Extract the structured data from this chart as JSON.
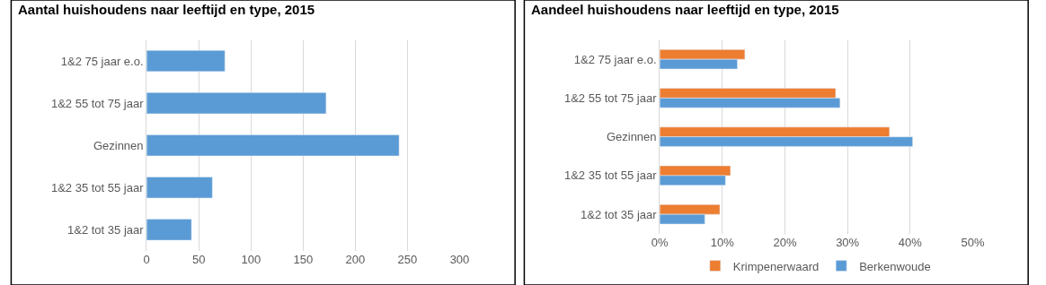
{
  "chart_data": [
    {
      "type": "bar",
      "orientation": "horizontal",
      "title": "Aantal huishoudens naar leeftijd en type, 2015",
      "categories": [
        "1&2 75 jaar e.o.",
        "1&2 55 tot 75 jaar",
        "Gezinnen",
        "1&2 35 tot 55 jaar",
        "1&2 tot 35 jaar"
      ],
      "series": [
        {
          "color": "#5b9bd5",
          "values": [
            75,
            172,
            242,
            63,
            43
          ]
        }
      ],
      "xlim": [
        0,
        300
      ],
      "xticks": [
        0,
        50,
        100,
        150,
        200,
        250,
        300
      ],
      "grid": "x",
      "legend": false
    },
    {
      "type": "bar",
      "orientation": "horizontal",
      "title": "Aandeel huishoudens naar leeftijd en type, 2015",
      "categories": [
        "1&2 75 jaar e.o.",
        "1&2 55 tot 75 jaar",
        "Gezinnen",
        "1&2 35 tot 55 jaar",
        "1&2 tot 35 jaar"
      ],
      "series": [
        {
          "name": "Krimpenerwaard",
          "color": "#ed7d31",
          "values": [
            13.6,
            28.1,
            36.7,
            11.3,
            9.6
          ]
        },
        {
          "name": "Berkenwoude",
          "color": "#5b9bd5",
          "values": [
            12.4,
            28.8,
            40.4,
            10.5,
            7.2
          ]
        }
      ],
      "xlim": [
        0,
        50
      ],
      "xticks": [
        {
          "value": 0,
          "label": "0%"
        },
        {
          "value": 10,
          "label": "10%"
        },
        {
          "value": 20,
          "label": "20%"
        },
        {
          "value": 30,
          "label": "30%"
        },
        {
          "value": 40,
          "label": "40%"
        },
        {
          "value": 50,
          "label": "50%"
        }
      ],
      "grid": "x",
      "legend": "bottom"
    }
  ]
}
